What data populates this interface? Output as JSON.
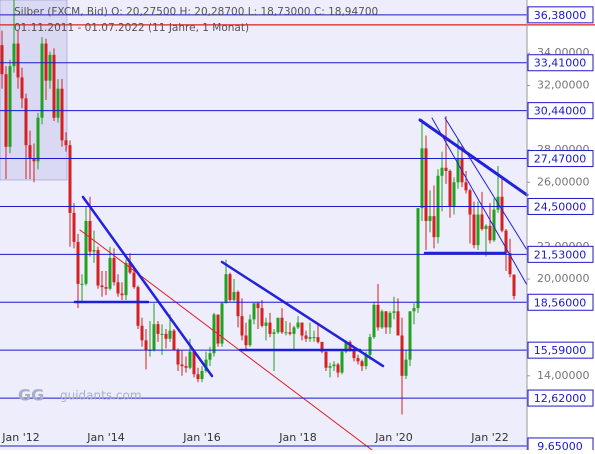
{
  "chart_data": {
    "type": "candlestick",
    "header": "Silber (FXCM, Bid)  O: 20,27500  H: 20,28700  L: 18,73000  C: 18,94700",
    "period": "01.11.2011 - 01.07.2022   (11 Jahre, 1 Monat)",
    "watermark": "guidants.com",
    "categories": [
      null,
      null,
      "Jan '12",
      null,
      null,
      null,
      null,
      null,
      null,
      null,
      null,
      null,
      null,
      null,
      null,
      null,
      null,
      null,
      null,
      null,
      null,
      null,
      null,
      null,
      null,
      null,
      "Jan '14",
      null,
      null,
      null,
      null,
      null,
      null,
      null,
      null,
      null,
      null,
      null,
      null,
      null,
      null,
      null,
      null,
      null,
      null,
      null,
      null,
      null,
      null,
      null,
      "Jan '16",
      null,
      null,
      null,
      null,
      null,
      null,
      null,
      null,
      null,
      null,
      null,
      null,
      null,
      null,
      null,
      null,
      null,
      null,
      null,
      null,
      null,
      null,
      null,
      "Jan '18",
      null,
      null,
      null,
      null,
      null,
      null,
      null,
      null,
      null,
      null,
      null,
      null,
      null,
      null,
      null,
      null,
      null,
      null,
      null,
      null,
      null,
      null,
      null,
      "Jan '20",
      null,
      null,
      null,
      null,
      null,
      null,
      null,
      null,
      null,
      null,
      null,
      null,
      null,
      null,
      null,
      null,
      null,
      null,
      null,
      null,
      null,
      null,
      null,
      "Jan '22",
      null,
      null,
      null,
      null,
      null,
      null
    ],
    "ohlc": [
      [
        34.5,
        35.4,
        31.8,
        32.7
      ],
      [
        32.7,
        33.2,
        26.2,
        28.2
      ],
      [
        28.2,
        33.6,
        27.8,
        33.2
      ],
      [
        33.2,
        37.3,
        32.8,
        34.6
      ],
      [
        34.6,
        35.4,
        31.8,
        32.5
      ],
      [
        32.5,
        33.1,
        30.6,
        31.2
      ],
      [
        31.2,
        31.5,
        26.2,
        28.3
      ],
      [
        28.3,
        29.2,
        26.2,
        27.5
      ],
      [
        27.5,
        28.4,
        26.0,
        27.3
      ],
      [
        27.3,
        30.3,
        26.8,
        30.0
      ],
      [
        30.0,
        35.0,
        29.6,
        34.6
      ],
      [
        34.6,
        34.9,
        31.1,
        32.3
      ],
      [
        32.3,
        34.1,
        31.8,
        33.9
      ],
      [
        33.9,
        34.3,
        29.8,
        30.0
      ],
      [
        30.0,
        32.4,
        29.7,
        31.8
      ],
      [
        31.8,
        32.4,
        28.2,
        28.6
      ],
      [
        28.6,
        29.1,
        27.9,
        28.3
      ],
      [
        28.3,
        28.6,
        22.0,
        24.1
      ],
      [
        24.1,
        24.7,
        21.9,
        22.3
      ],
      [
        22.3,
        22.8,
        18.2,
        19.7
      ],
      [
        19.7,
        20.3,
        18.6,
        19.7
      ],
      [
        19.7,
        24.5,
        19.6,
        23.6
      ],
      [
        23.6,
        25.1,
        21.4,
        21.7
      ],
      [
        21.7,
        23.0,
        21.0,
        21.8
      ],
      [
        21.8,
        22.0,
        19.4,
        19.6
      ],
      [
        19.6,
        20.5,
        18.9,
        19.5
      ],
      [
        19.5,
        20.5,
        19.0,
        19.4
      ],
      [
        19.4,
        22.0,
        19.3,
        21.3
      ],
      [
        21.3,
        21.9,
        19.6,
        19.8
      ],
      [
        19.8,
        20.3,
        18.9,
        19.1
      ],
      [
        19.1,
        19.8,
        18.7,
        19.0
      ],
      [
        19.0,
        21.2,
        18.7,
        21.0
      ],
      [
        21.0,
        21.6,
        20.3,
        20.4
      ],
      [
        20.4,
        20.6,
        19.4,
        19.5
      ],
      [
        19.5,
        19.6,
        16.9,
        17.1
      ],
      [
        17.1,
        17.6,
        15.8,
        16.2
      ],
      [
        16.2,
        16.9,
        14.4,
        15.6
      ],
      [
        15.6,
        17.4,
        15.2,
        15.6
      ],
      [
        15.6,
        18.5,
        15.5,
        17.2
      ],
      [
        17.2,
        17.4,
        16.1,
        16.6
      ],
      [
        16.6,
        17.2,
        15.3,
        16.6
      ],
      [
        16.6,
        16.9,
        15.7,
        16.3
      ],
      [
        16.3,
        17.8,
        16.1,
        16.8
      ],
      [
        16.8,
        16.9,
        15.6,
        15.6
      ],
      [
        15.6,
        15.7,
        14.3,
        14.7
      ],
      [
        14.7,
        15.6,
        14.0,
        14.6
      ],
      [
        14.6,
        15.2,
        14.2,
        14.5
      ],
      [
        14.5,
        16.3,
        14.4,
        15.5
      ],
      [
        15.5,
        15.6,
        13.9,
        14.1
      ],
      [
        14.1,
        14.5,
        13.6,
        13.8
      ],
      [
        13.8,
        14.6,
        13.6,
        14.3
      ],
      [
        14.3,
        15.5,
        14.2,
        15.0
      ],
      [
        15.0,
        15.8,
        14.6,
        15.4
      ],
      [
        15.4,
        17.9,
        15.2,
        17.8
      ],
      [
        17.8,
        17.8,
        15.8,
        16.0
      ],
      [
        16.0,
        18.6,
        15.8,
        18.5
      ],
      [
        18.5,
        21.2,
        18.5,
        20.3
      ],
      [
        20.3,
        20.4,
        18.6,
        18.7
      ],
      [
        18.7,
        20.0,
        18.6,
        19.2
      ],
      [
        19.2,
        19.3,
        17.0,
        17.7
      ],
      [
        17.7,
        18.8,
        16.2,
        16.5
      ],
      [
        16.5,
        17.3,
        15.6,
        15.9
      ],
      [
        15.9,
        17.8,
        15.8,
        17.5
      ],
      [
        17.5,
        18.5,
        17.2,
        18.5
      ],
      [
        18.5,
        18.6,
        16.9,
        18.2
      ],
      [
        18.2,
        18.7,
        17.0,
        17.1
      ],
      [
        17.1,
        17.6,
        16.2,
        17.3
      ],
      [
        17.3,
        17.9,
        16.4,
        16.6
      ],
      [
        16.6,
        16.9,
        14.3,
        16.7
      ],
      [
        16.7,
        17.6,
        16.6,
        17.6
      ],
      [
        17.6,
        18.2,
        16.6,
        16.7
      ],
      [
        16.7,
        17.4,
        16.5,
        16.7
      ],
      [
        16.7,
        17.3,
        16.5,
        16.6
      ],
      [
        16.6,
        17.1,
        15.6,
        17.0
      ],
      [
        17.0,
        17.7,
        16.9,
        17.3
      ],
      [
        17.3,
        17.3,
        16.2,
        16.5
      ],
      [
        16.5,
        16.8,
        16.1,
        16.3
      ],
      [
        16.3,
        17.3,
        16.1,
        16.4
      ],
      [
        16.4,
        16.8,
        16.1,
        16.4
      ],
      [
        16.4,
        17.3,
        16.0,
        16.1
      ],
      [
        16.1,
        16.1,
        15.4,
        15.5
      ],
      [
        15.5,
        15.5,
        14.3,
        14.5
      ],
      [
        14.5,
        14.8,
        13.9,
        14.6
      ],
      [
        14.6,
        14.9,
        14.3,
        14.7
      ],
      [
        14.7,
        14.8,
        13.9,
        14.2
      ],
      [
        14.2,
        15.6,
        14.1,
        15.5
      ],
      [
        15.5,
        16.2,
        15.4,
        16.1
      ],
      [
        16.1,
        16.2,
        15.5,
        15.6
      ],
      [
        15.6,
        15.6,
        14.9,
        15.1
      ],
      [
        15.1,
        15.3,
        14.7,
        14.9
      ],
      [
        14.9,
        15.0,
        14.3,
        14.6
      ],
      [
        14.6,
        15.5,
        14.4,
        15.3
      ],
      [
        15.3,
        16.6,
        15.0,
        16.4
      ],
      [
        16.4,
        18.6,
        16.3,
        18.4
      ],
      [
        18.4,
        19.7,
        16.8,
        17.0
      ],
      [
        17.0,
        18.1,
        16.9,
        18.0
      ],
      [
        18.0,
        18.0,
        16.6,
        17.0
      ],
      [
        17.0,
        18.0,
        16.6,
        17.9
      ],
      [
        17.9,
        18.9,
        17.5,
        18.0
      ],
      [
        18.0,
        18.8,
        16.5,
        16.5
      ],
      [
        16.5,
        17.6,
        11.6,
        14.0
      ],
      [
        14.0,
        15.6,
        13.8,
        15.0
      ],
      [
        15.0,
        18.0,
        14.6,
        18.0
      ],
      [
        18.0,
        18.5,
        17.2,
        18.2
      ],
      [
        18.2,
        24.4,
        17.9,
        24.4
      ],
      [
        24.4,
        29.9,
        23.6,
        28.1
      ],
      [
        28.1,
        28.9,
        21.8,
        23.6
      ],
      [
        23.6,
        25.5,
        22.9,
        23.9
      ],
      [
        23.9,
        25.8,
        21.9,
        22.6
      ],
      [
        22.6,
        26.8,
        22.2,
        26.4
      ],
      [
        26.4,
        27.9,
        24.2,
        26.9
      ],
      [
        26.9,
        30.1,
        25.9,
        26.7
      ],
      [
        26.7,
        26.8,
        23.8,
        24.5
      ],
      [
        24.5,
        26.3,
        24.0,
        26.0
      ],
      [
        26.0,
        28.7,
        25.6,
        27.5
      ],
      [
        27.5,
        28.3,
        25.7,
        26.0
      ],
      [
        26.0,
        26.7,
        25.3,
        25.5
      ],
      [
        25.5,
        25.6,
        22.2,
        24.0
      ],
      [
        24.0,
        24.8,
        21.9,
        22.1
      ],
      [
        22.1,
        24.8,
        21.8,
        24.0
      ],
      [
        24.0,
        25.4,
        23.0,
        23.1
      ],
      [
        23.1,
        23.4,
        21.4,
        23.3
      ],
      [
        23.3,
        24.7,
        22.2,
        22.4
      ],
      [
        22.4,
        25.0,
        22.3,
        24.3
      ],
      [
        24.3,
        27.0,
        24.1,
        25.1
      ],
      [
        25.1,
        26.2,
        22.9,
        23.0
      ],
      [
        23.0,
        23.1,
        20.5,
        21.6
      ],
      [
        21.6,
        22.5,
        20.1,
        20.3
      ],
      [
        20.275,
        20.287,
        18.73,
        18.947
      ]
    ],
    "up_color": "#22a022",
    "down_color": "#d42020",
    "ylim": [
      9.4,
      37.3
    ],
    "yticks": [
      {
        "value": 34,
        "label": "34,00000"
      },
      {
        "value": 32,
        "label": "32,00000"
      },
      {
        "value": 28,
        "label": "28,00000"
      },
      {
        "value": 26,
        "label": "26,00000"
      },
      {
        "value": 22,
        "label": "22,00000"
      },
      {
        "value": 20,
        "label": "20,00000"
      },
      {
        "value": 14,
        "label": "14,00000"
      }
    ],
    "levels": [
      {
        "value": 36.38,
        "label": "36,38000"
      },
      {
        "value": 33.41,
        "label": "33,41000"
      },
      {
        "value": 30.44,
        "label": "30,44000"
      },
      {
        "value": 27.47,
        "label": "27,47000"
      },
      {
        "value": 24.5,
        "label": "24,50000"
      },
      {
        "value": 21.53,
        "label": "21,53000"
      },
      {
        "value": 18.56,
        "label": "18,56000"
      },
      {
        "value": 15.59,
        "label": "15,59000"
      },
      {
        "value": 12.62,
        "label": "12,62000"
      },
      {
        "value": 9.65,
        "label": "9,65000"
      }
    ],
    "level_color": "#1a1acc",
    "red_level": 35.76,
    "red_color": "#e02020"
  }
}
